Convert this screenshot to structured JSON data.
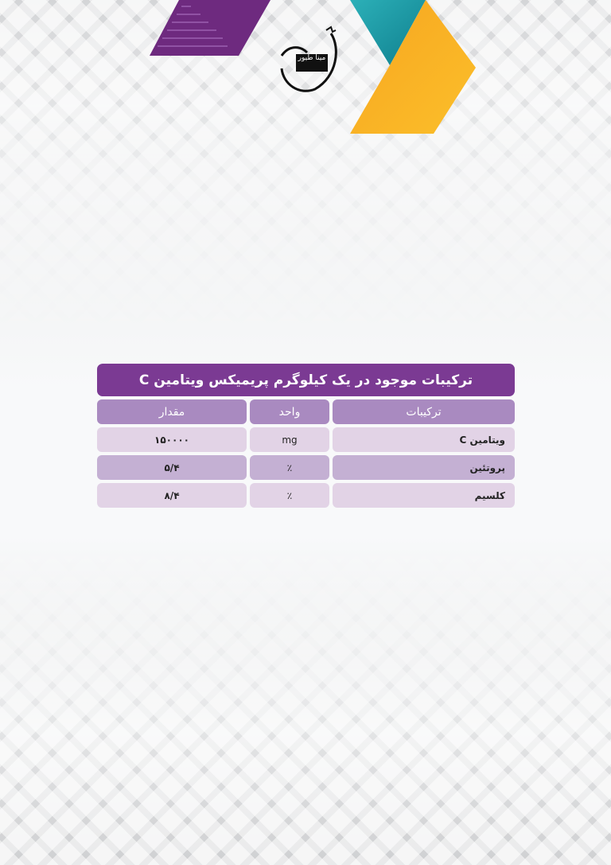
{
  "logo": {
    "text": "مینا طیور",
    "icon": "rooster-logo"
  },
  "colors": {
    "purple": "#7b3a93",
    "header": "#a98ac0",
    "teal": "#1a9aa8",
    "orange": "#f5a41f"
  },
  "table": {
    "title": "ترکیبات موجود در یک کیلوگرم پریمیکس ویتامین C",
    "headers": [
      "ترکیبات",
      "واحد",
      "مقدار"
    ],
    "rows": [
      [
        "ویتامین C",
        "mg",
        "۱۵۰۰۰۰"
      ],
      [
        "پروتئین",
        "٪",
        "۵/۴"
      ],
      [
        "کلسیم",
        "٪",
        "۸/۴"
      ]
    ]
  }
}
